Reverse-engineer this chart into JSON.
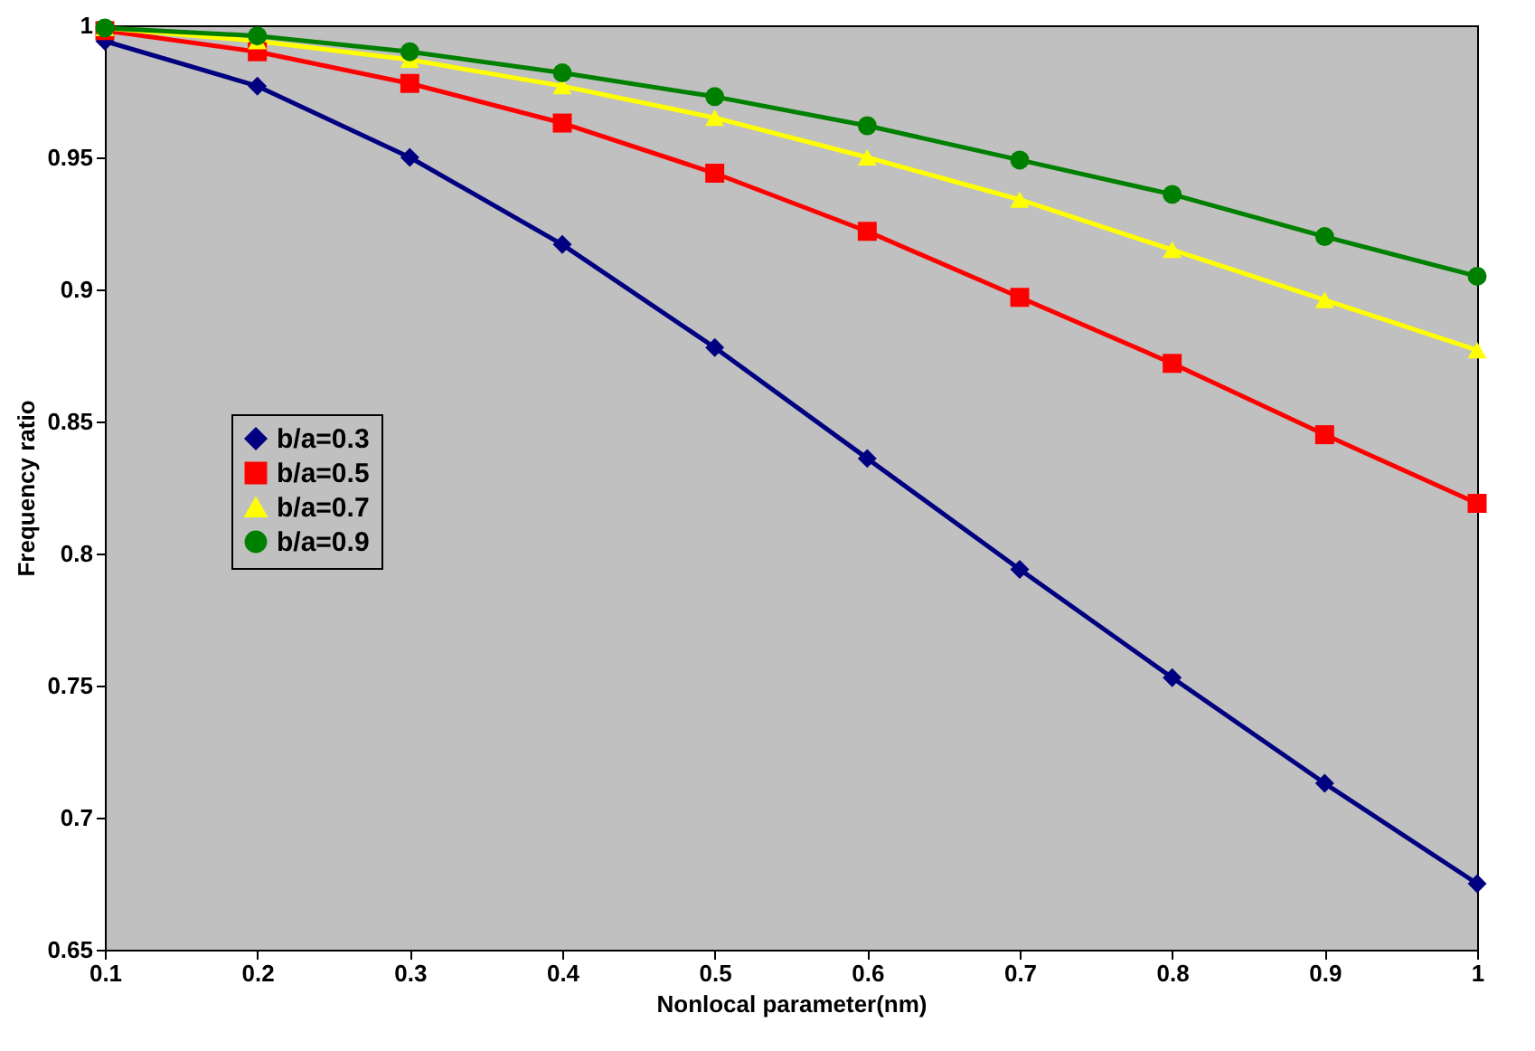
{
  "chart_data": {
    "type": "line",
    "xlabel": "Nonlocal parameter(nm)",
    "ylabel": "Frequency ratio",
    "x": [
      0.1,
      0.2,
      0.3,
      0.4,
      0.5,
      0.6,
      0.7,
      0.8,
      0.9,
      1.0
    ],
    "series": [
      {
        "name": "b/a=0.3",
        "color": "#000080",
        "marker": "diamond",
        "values": [
          0.994,
          0.977,
          0.95,
          0.917,
          0.878,
          0.836,
          0.794,
          0.753,
          0.713,
          0.675
        ]
      },
      {
        "name": "b/a=0.5",
        "color": "#ff0000",
        "marker": "square",
        "values": [
          0.998,
          0.99,
          0.978,
          0.963,
          0.944,
          0.922,
          0.897,
          0.872,
          0.845,
          0.819
        ]
      },
      {
        "name": "b/a=0.7",
        "color": "#ffff00",
        "marker": "triangle",
        "values": [
          0.999,
          0.994,
          0.987,
          0.977,
          0.965,
          0.95,
          0.934,
          0.915,
          0.896,
          0.877
        ]
      },
      {
        "name": "b/a=0.9",
        "color": "#008000",
        "marker": "circle",
        "values": [
          0.999,
          0.996,
          0.99,
          0.982,
          0.973,
          0.962,
          0.949,
          0.936,
          0.92,
          0.905
        ]
      }
    ],
    "xlim": [
      0.1,
      1.0
    ],
    "xticks": [
      0.1,
      0.2,
      0.3,
      0.4,
      0.5,
      0.6,
      0.7,
      0.8,
      0.9,
      1
    ],
    "ylim": [
      0.65,
      1
    ],
    "yticks": [
      0.65,
      0.7,
      0.75,
      0.8,
      0.85,
      0.9,
      0.95,
      1
    ],
    "grid": false,
    "legend": "left",
    "line_style": "solid"
  }
}
